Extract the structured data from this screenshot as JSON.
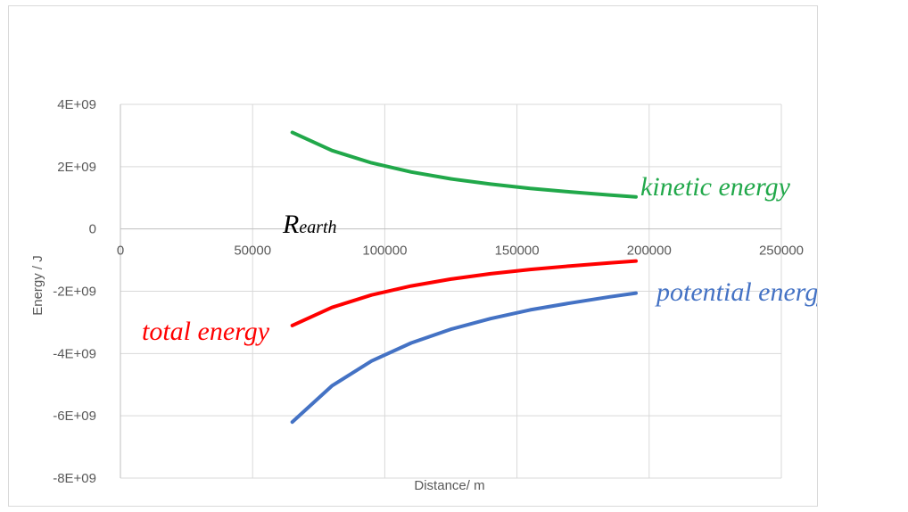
{
  "chart_data": {
    "type": "line",
    "xlabel": "Distance/ m",
    "ylabel": "Energy / J",
    "xlim": [
      0,
      250000
    ],
    "ylim": [
      -8000000000,
      4000000000
    ],
    "x_ticks": [
      0,
      50000,
      100000,
      150000,
      200000,
      250000
    ],
    "x_tick_labels": [
      "0",
      "50000",
      "100000",
      "150000",
      "200000",
      "250000"
    ],
    "y_ticks": [
      4000000000,
      2000000000,
      0,
      -2000000000,
      -4000000000,
      -6000000000,
      -8000000000
    ],
    "y_tick_labels": [
      "4E+09",
      "2E+09",
      "0",
      "-2E+09",
      "-4E+09",
      "-6E+09",
      "-8E+09"
    ],
    "grid": "vertical and horizontal",
    "colors": {
      "kinetic": "#21a84a",
      "total": "#ff0000",
      "potential": "#4472c4"
    },
    "series": [
      {
        "name": "kinetic energy",
        "x": [
          65000,
          80000,
          95000,
          110000,
          125000,
          140000,
          155000,
          170000,
          185000,
          195000
        ],
        "values": [
          3100000000,
          2520000000,
          2120000000,
          1830000000,
          1610000000,
          1440000000,
          1300000000,
          1190000000,
          1090000000,
          1030000000
        ]
      },
      {
        "name": "total energy",
        "x": [
          65000,
          80000,
          95000,
          110000,
          125000,
          140000,
          155000,
          170000,
          185000,
          195000
        ],
        "values": [
          -3100000000,
          -2520000000,
          -2120000000,
          -1830000000,
          -1610000000,
          -1440000000,
          -1300000000,
          -1190000000,
          -1090000000,
          -1030000000
        ]
      },
      {
        "name": "potential energy",
        "x": [
          65000,
          80000,
          95000,
          110000,
          125000,
          140000,
          155000,
          170000,
          185000,
          195000
        ],
        "values": [
          -6200000000,
          -5040000000,
          -4240000000,
          -3660000000,
          -3220000000,
          -2880000000,
          -2600000000,
          -2380000000,
          -2180000000,
          -2060000000
        ]
      }
    ],
    "annotations": [
      {
        "text": "kinetic energy",
        "color": "#21a84a"
      },
      {
        "text": "potential energy",
        "color": "#4472c4"
      },
      {
        "text": "total energy",
        "color": "#ff0000"
      },
      {
        "base": "R",
        "sub": "earth",
        "color": "#000000"
      }
    ]
  }
}
